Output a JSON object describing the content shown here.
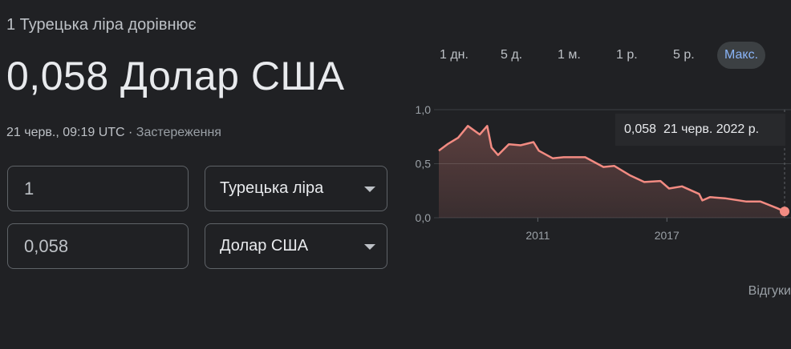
{
  "header": {
    "label": "1 Турецька ліра дорівнює",
    "result": "0,058 Долар США",
    "timestamp": "21 черв., 09:19 UTC",
    "separator": " · ",
    "disclaimer": "Застереження"
  },
  "converter": {
    "from_amount": "1",
    "from_currency": "Турецька ліра",
    "to_amount": "0,058",
    "to_currency": "Долар США"
  },
  "periods": [
    {
      "label": "1 дн."
    },
    {
      "label": "5 д."
    },
    {
      "label": "1 м."
    },
    {
      "label": "1 р."
    },
    {
      "label": "5 р."
    },
    {
      "label": "Макс.",
      "active": true
    }
  ],
  "tooltip": {
    "value": "0,058",
    "date": "21 черв. 2022 р."
  },
  "feedback": "Відгуки",
  "colors": {
    "line": "#f28b82",
    "accent": "#8ab4f8",
    "background": "#202124"
  },
  "chart_data": {
    "type": "area",
    "xlim": [
      2006.4,
      2022.47
    ],
    "ylim": [
      0,
      1.0
    ],
    "y_ticks": [
      "0,0",
      "0,5",
      "1,0"
    ],
    "y_tick_values": [
      0,
      0.5,
      1.0
    ],
    "x_ticks": [
      "2011",
      "2017"
    ],
    "x_tick_values": [
      2011,
      2017
    ],
    "grid": true,
    "x": [
      2006.4,
      2006.8,
      2007.3,
      2007.75,
      2008.3,
      2008.65,
      2008.85,
      2009.15,
      2009.65,
      2010.2,
      2010.8,
      2011.05,
      2011.7,
      2012.2,
      2013.2,
      2014.05,
      2014.55,
      2015.3,
      2015.95,
      2016.7,
      2017.1,
      2017.7,
      2018.5,
      2018.65,
      2019.0,
      2019.7,
      2020.7,
      2021.35,
      2022.1,
      2022.47
    ],
    "y": [
      0.62,
      0.68,
      0.74,
      0.85,
      0.77,
      0.85,
      0.65,
      0.58,
      0.68,
      0.67,
      0.7,
      0.62,
      0.55,
      0.56,
      0.56,
      0.47,
      0.48,
      0.39,
      0.33,
      0.34,
      0.27,
      0.29,
      0.22,
      0.16,
      0.19,
      0.18,
      0.15,
      0.15,
      0.09,
      0.058
    ]
  }
}
